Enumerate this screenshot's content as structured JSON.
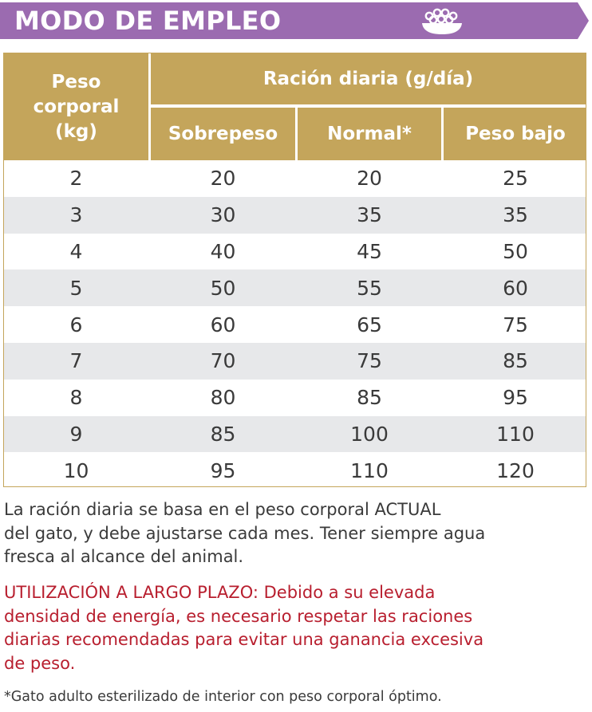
{
  "colors": {
    "banner": "#9b6bb0",
    "table_header": "#c4a55b",
    "row_alt": "#e7e8ea",
    "body_text": "#3a3a3a",
    "warning_text": "#b81e2e"
  },
  "header": {
    "title": "MODO DE EMPLEO",
    "icon": "food-bowl-icon"
  },
  "table": {
    "col_weight": {
      "line1": "Peso",
      "line2": "corporal",
      "line3": "(kg)"
    },
    "group_label": "Ración diaria (g/día)",
    "sub_headers": [
      "Sobrepeso",
      "Normal*",
      "Peso bajo"
    ],
    "rows": [
      [
        "2",
        "20",
        "20",
        "25"
      ],
      [
        "3",
        "30",
        "35",
        "35"
      ],
      [
        "4",
        "40",
        "45",
        "50"
      ],
      [
        "5",
        "50",
        "55",
        "60"
      ],
      [
        "6",
        "60",
        "65",
        "75"
      ],
      [
        "7",
        "70",
        "75",
        "85"
      ],
      [
        "8",
        "80",
        "85",
        "95"
      ],
      [
        "9",
        "85",
        "100",
        "110"
      ],
      [
        "10",
        "95",
        "110",
        "120"
      ]
    ]
  },
  "info": {
    "line1": "La ración diaria se basa en el peso corporal ACTUAL",
    "line2": "del gato, y debe ajustarse cada mes. Tener siempre agua",
    "line3": "fresca al alcance del animal."
  },
  "warning": {
    "line1": "UTILIZACIÓN A LARGO PLAZO: Debido a su elevada",
    "line2": "densidad de energía, es necesario respetar las raciones",
    "line3": "diarias recomendadas para evitar una ganancia excesiva",
    "line4": "de peso."
  },
  "footnote": "*Gato adulto esterilizado de interior con peso corporal óptimo."
}
